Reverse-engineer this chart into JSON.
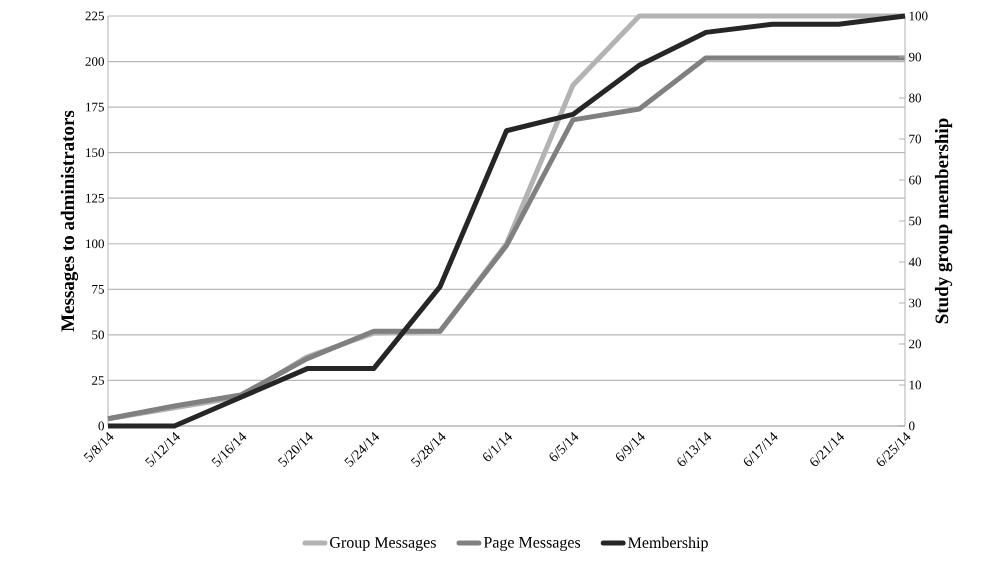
{
  "chart_data": {
    "type": "line",
    "categories": [
      "5/8/14",
      "5/12/14",
      "5/16/14",
      "5/20/14",
      "5/24/14",
      "5/28/14",
      "6/1/14",
      "6/5/14",
      "6/9/14",
      "6/13/14",
      "6/17/14",
      "6/21/14",
      "6/25/14"
    ],
    "series": [
      {
        "name": "Group Messages",
        "color": "#b3b3b3",
        "values": [
          4,
          10,
          16,
          38,
          51,
          52,
          100,
          187,
          225,
          225,
          225,
          225,
          225
        ]
      },
      {
        "name": "Page Messages",
        "color": "#808080",
        "values": [
          4,
          11,
          17,
          37,
          52,
          52,
          99,
          168,
          174,
          202,
          202,
          202,
          202
        ]
      },
      {
        "name": "Membership",
        "color": "#262626",
        "axis": "y2",
        "values": [
          0,
          0,
          7,
          14,
          14,
          34,
          72,
          76,
          88,
          96,
          98,
          98,
          100
        ]
      }
    ],
    "ylabel": "Messages to administrators",
    "y2label": "Study group membership",
    "ylim": [
      0,
      225
    ],
    "yticks": [
      0,
      25,
      50,
      75,
      100,
      125,
      150,
      175,
      200,
      225
    ],
    "y2lim": [
      0,
      100
    ],
    "y2ticks": [
      0,
      10,
      20,
      30,
      40,
      50,
      60,
      70,
      80,
      90,
      100
    ],
    "grid": "y",
    "legend": "bottom",
    "marker": "none",
    "line_style": "solid"
  }
}
